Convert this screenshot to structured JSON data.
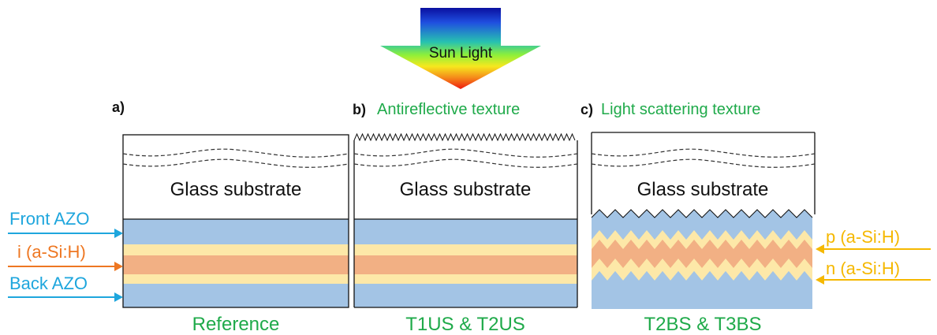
{
  "light": {
    "label": "Sun Light"
  },
  "panels": [
    {
      "tag": "a)",
      "heading": "",
      "substrate": "Glass substrate",
      "caption": "Reference"
    },
    {
      "tag": "b)",
      "heading": "Antireflective texture",
      "substrate": "Glass substrate",
      "caption": "T1US & T2US"
    },
    {
      "tag": "c)",
      "heading": "Light scattering texture",
      "substrate": "Glass substrate",
      "caption": "T2BS & T3BS"
    }
  ],
  "layer_labels": {
    "front_azo": "Front AZO",
    "i_layer": "i (a-Si:H)",
    "back_azo": "Back AZO",
    "p_layer": "p (a-Si:H)",
    "n_layer": "n (a-Si:H)"
  },
  "colors": {
    "azo": "#a3c4e5",
    "doped": "#fde8a8",
    "intrinsic": "#f2b084",
    "caption_green": "#1faa4a",
    "label_blue": "#1ea6dd",
    "label_orange": "#ee7722",
    "label_yellow": "#f5b800"
  }
}
